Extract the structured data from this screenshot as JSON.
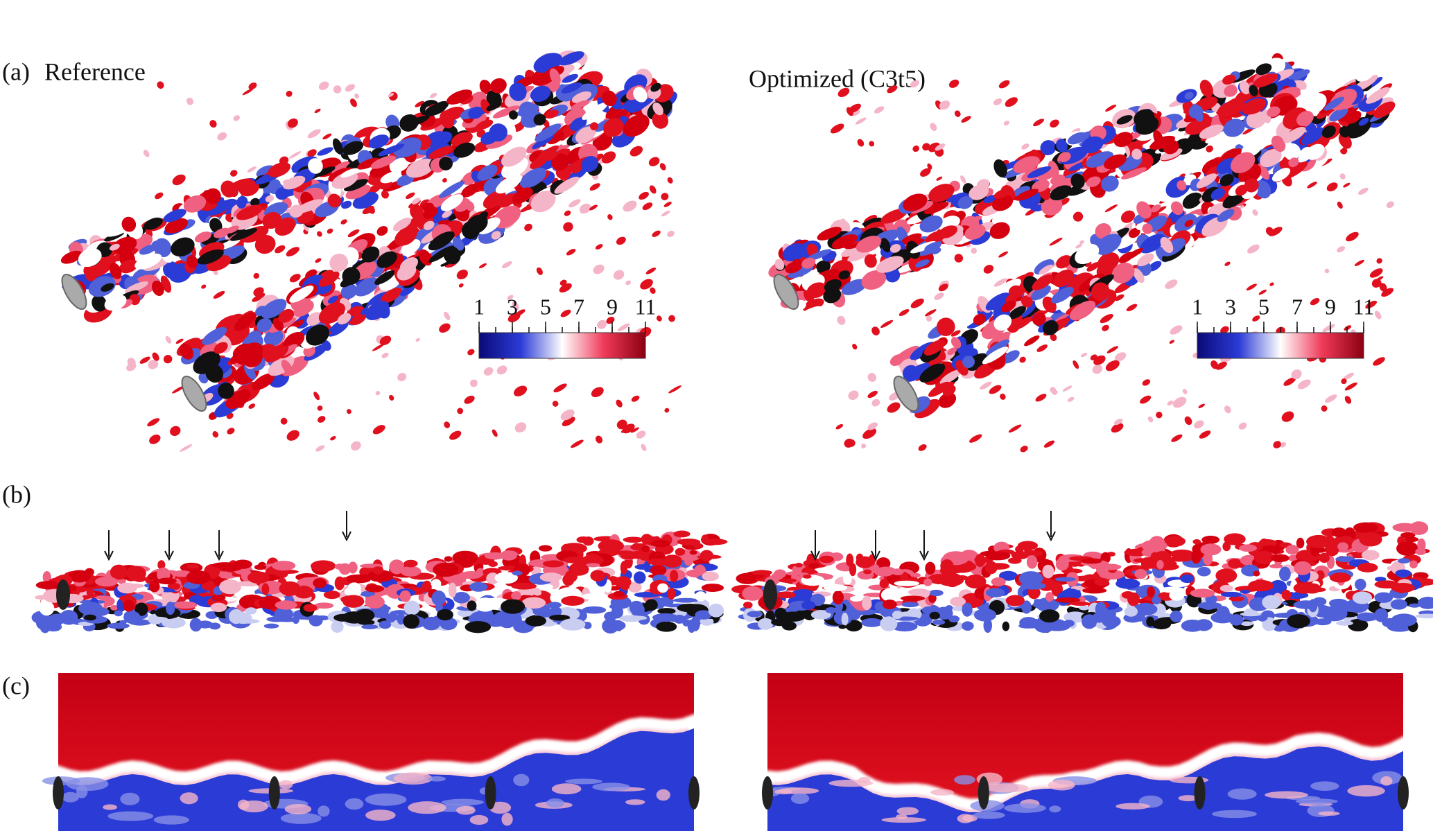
{
  "panel_a": {
    "label": "(a)",
    "titles": [
      "Reference",
      "Optimized (C3t5)"
    ]
  },
  "panel_b": {
    "label": "(b)"
  },
  "panel_c": {
    "label": "(c)"
  },
  "colorbars": [
    {
      "range": [
        1,
        11
      ],
      "ticks": [
        1,
        3,
        5,
        7,
        9,
        11
      ],
      "colors": [
        "#0a0a78",
        "#2b3bd6",
        "#ffffff",
        "#f03a5a",
        "#8b0010"
      ]
    },
    {
      "range": [
        1,
        11
      ],
      "ticks": [
        1,
        3,
        5,
        7,
        9,
        11
      ],
      "colors": [
        "#0a0a78",
        "#2b3bd6",
        "#ffffff",
        "#f03a5a",
        "#8b0010"
      ]
    }
  ]
}
